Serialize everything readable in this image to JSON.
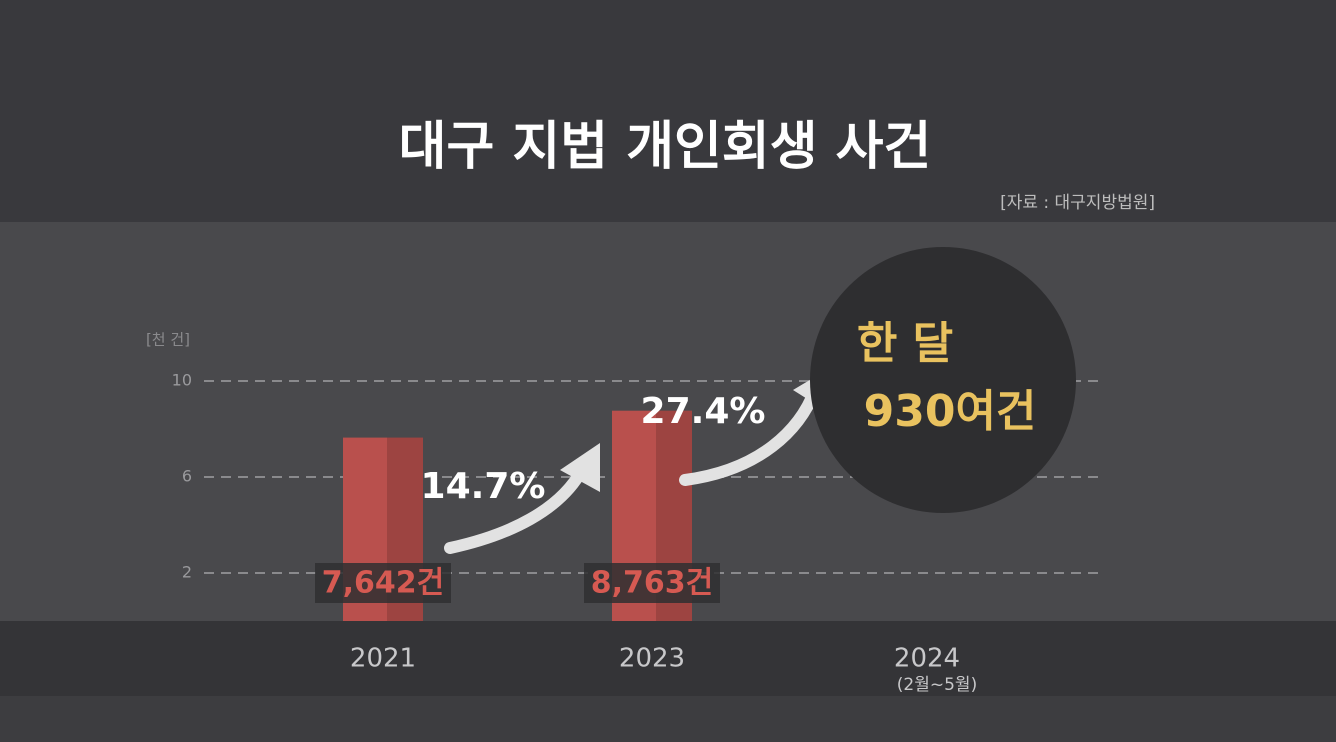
{
  "chart_data": {
    "type": "bar",
    "title": "대구 지법 개인회생 사건",
    "source": "[자료 : 대구지방법원]",
    "y_unit": "[천 건]",
    "categories": [
      "2021",
      "2023",
      "2024"
    ],
    "category_notes": [
      null,
      null,
      "(2월~5월)"
    ],
    "values": [
      7.642,
      8.763,
      null
    ],
    "value_labels": [
      "7,642건",
      "8,763건",
      null
    ],
    "color": "#b9504d",
    "ylim": [
      0,
      10
    ],
    "yticks": [
      2,
      6,
      10
    ],
    "grid": true,
    "growth_labels": [
      "14.7%",
      "27.4%"
    ],
    "callout": {
      "line1": "한 달",
      "line2": "930여건"
    }
  }
}
